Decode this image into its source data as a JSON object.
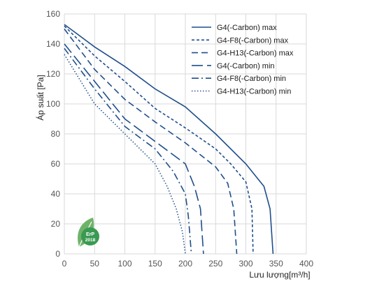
{
  "chart_data": {
    "type": "line",
    "xlabel": "Lưu lượng[m³/h]",
    "ylabel": "Áp suất [Pa]",
    "xlim": [
      0,
      400
    ],
    "ylim": [
      0,
      160
    ],
    "xticks": [
      0,
      50,
      100,
      150,
      200,
      250,
      300,
      350,
      400
    ],
    "yticks": [
      0,
      20,
      40,
      60,
      80,
      100,
      120,
      140,
      160
    ],
    "grid": true,
    "legend_position": "top-right",
    "colors": {
      "line": "#1f4e8c",
      "grid": "#d9d9d9",
      "badge": "#3a9a52"
    },
    "series": [
      {
        "name": "G4(-Carbon) max",
        "dash": "solid",
        "points": [
          [
            0,
            153
          ],
          [
            20,
            147
          ],
          [
            50,
            138
          ],
          [
            100,
            125
          ],
          [
            150,
            110
          ],
          [
            200,
            98
          ],
          [
            250,
            80
          ],
          [
            300,
            60
          ],
          [
            330,
            45
          ],
          [
            340,
            30
          ],
          [
            345,
            0
          ]
        ]
      },
      {
        "name": "G4-F8(-Carbon) max",
        "dash": "short-dash",
        "points": [
          [
            0,
            152
          ],
          [
            50,
            132
          ],
          [
            100,
            115
          ],
          [
            150,
            97
          ],
          [
            200,
            84
          ],
          [
            250,
            70
          ],
          [
            275,
            60
          ],
          [
            300,
            48
          ],
          [
            310,
            30
          ],
          [
            312,
            0
          ]
        ]
      },
      {
        "name": "G4-H13(-Carbon) max",
        "dash": "dash",
        "points": [
          [
            0,
            150
          ],
          [
            50,
            123
          ],
          [
            100,
            103
          ],
          [
            150,
            88
          ],
          [
            200,
            74
          ],
          [
            250,
            58
          ],
          [
            270,
            47
          ],
          [
            280,
            30
          ],
          [
            285,
            0
          ]
        ]
      },
      {
        "name": "G4(-Carbon) min",
        "dash": "long-dash",
        "points": [
          [
            0,
            140
          ],
          [
            50,
            115
          ],
          [
            100,
            90
          ],
          [
            150,
            75
          ],
          [
            200,
            60
          ],
          [
            215,
            45
          ],
          [
            225,
            30
          ],
          [
            230,
            0
          ]
        ]
      },
      {
        "name": "G4-F8(-Carbon) min",
        "dash": "dash-dot",
        "points": [
          [
            0,
            137
          ],
          [
            50,
            110
          ],
          [
            100,
            85
          ],
          [
            150,
            70
          ],
          [
            180,
            55
          ],
          [
            200,
            40
          ],
          [
            205,
            25
          ],
          [
            210,
            0
          ]
        ]
      },
      {
        "name": "G4-H13(-Carbon) min",
        "dash": "dotted",
        "points": [
          [
            0,
            133
          ],
          [
            50,
            100
          ],
          [
            100,
            80
          ],
          [
            150,
            60
          ],
          [
            170,
            45
          ],
          [
            185,
            30
          ],
          [
            195,
            15
          ],
          [
            200,
            0
          ]
        ]
      }
    ]
  },
  "badge": {
    "label": "ErP",
    "year": "2018"
  }
}
